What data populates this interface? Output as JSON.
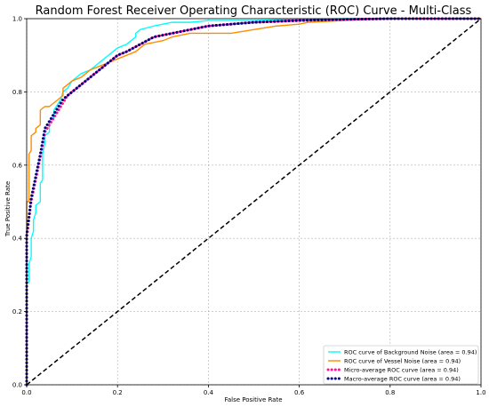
{
  "chart_data": {
    "type": "line",
    "title": "Random Forest Receiver Operating Characteristic (ROC) Curve - Multi-Class",
    "xlabel": "False Positive Rate",
    "ylabel": "True Positive Rate",
    "xlim": [
      0.0,
      1.0
    ],
    "ylim": [
      0.0,
      1.0
    ],
    "xticks": [
      "0.0",
      "0.2",
      "0.4",
      "0.6",
      "0.8",
      "1.0"
    ],
    "yticks": [
      "0.0",
      "0.2",
      "0.4",
      "0.6",
      "0.8",
      "1.0"
    ],
    "grid": true,
    "legend_position": "lower-right",
    "series": [
      {
        "name": "ROC curve of Background Noise (area = 0.94)",
        "color": "#00ffff",
        "style": "solid",
        "x": [
          0.0,
          0.0,
          0.005,
          0.005,
          0.01,
          0.01,
          0.015,
          0.015,
          0.02,
          0.02,
          0.03,
          0.03,
          0.035,
          0.035,
          0.04,
          0.04,
          0.05,
          0.05,
          0.06,
          0.06,
          0.07,
          0.075,
          0.08,
          0.09,
          0.1,
          0.11,
          0.12,
          0.14,
          0.15,
          0.16,
          0.17,
          0.18,
          0.19,
          0.2,
          0.22,
          0.24,
          0.24,
          0.25,
          0.28,
          0.3,
          0.32,
          0.36,
          0.4,
          0.5,
          0.55,
          0.6,
          0.7,
          0.8,
          1.0
        ],
        "y": [
          0.0,
          0.28,
          0.28,
          0.33,
          0.35,
          0.4,
          0.42,
          0.45,
          0.47,
          0.49,
          0.5,
          0.55,
          0.56,
          0.63,
          0.66,
          0.68,
          0.69,
          0.72,
          0.73,
          0.75,
          0.77,
          0.78,
          0.8,
          0.81,
          0.83,
          0.84,
          0.85,
          0.86,
          0.87,
          0.88,
          0.89,
          0.9,
          0.91,
          0.92,
          0.93,
          0.95,
          0.96,
          0.97,
          0.98,
          0.985,
          0.99,
          0.99,
          0.995,
          0.995,
          0.997,
          0.998,
          1.0,
          1.0,
          1.0
        ]
      },
      {
        "name": "ROC curve of Vessel Noise (area = 0.94)",
        "color": "#ff8c00",
        "style": "solid",
        "x": [
          0.0,
          0.0,
          0.005,
          0.005,
          0.01,
          0.01,
          0.02,
          0.02,
          0.03,
          0.03,
          0.04,
          0.05,
          0.06,
          0.07,
          0.08,
          0.08,
          0.09,
          0.1,
          0.12,
          0.13,
          0.14,
          0.16,
          0.18,
          0.2,
          0.22,
          0.24,
          0.26,
          0.3,
          0.32,
          0.36,
          0.4,
          0.45,
          0.5,
          0.55,
          0.6,
          0.62,
          0.7,
          0.75,
          0.8,
          1.0
        ],
        "y": [
          0.0,
          0.5,
          0.5,
          0.63,
          0.64,
          0.68,
          0.69,
          0.7,
          0.71,
          0.75,
          0.76,
          0.76,
          0.77,
          0.78,
          0.79,
          0.81,
          0.82,
          0.83,
          0.84,
          0.85,
          0.86,
          0.87,
          0.88,
          0.89,
          0.9,
          0.91,
          0.93,
          0.94,
          0.95,
          0.96,
          0.96,
          0.96,
          0.97,
          0.98,
          0.985,
          0.99,
          0.995,
          0.998,
          1.0,
          1.0
        ]
      },
      {
        "name": "Micro-average ROC curve (area = 0.94)",
        "color": "#ff1493",
        "style": "dotted",
        "x": [
          0.0,
          0.0,
          0.005,
          0.01,
          0.015,
          0.02,
          0.03,
          0.04,
          0.05,
          0.06,
          0.07,
          0.08,
          0.09,
          0.1,
          0.11,
          0.12,
          0.14,
          0.16,
          0.18,
          0.2,
          0.22,
          0.25,
          0.28,
          0.32,
          0.36,
          0.4,
          0.5,
          0.6,
          0.7,
          0.8,
          0.9,
          1.0
        ],
        "y": [
          0.0,
          0.4,
          0.45,
          0.5,
          0.53,
          0.56,
          0.62,
          0.69,
          0.71,
          0.73,
          0.75,
          0.77,
          0.79,
          0.8,
          0.81,
          0.82,
          0.84,
          0.86,
          0.88,
          0.9,
          0.91,
          0.93,
          0.95,
          0.96,
          0.97,
          0.98,
          0.99,
          0.995,
          0.998,
          1.0,
          1.0,
          1.0
        ]
      },
      {
        "name": "Macro-average ROC curve (area = 0.94)",
        "color": "#000080",
        "style": "dotted",
        "x": [
          0.0,
          0.0,
          0.005,
          0.01,
          0.015,
          0.02,
          0.03,
          0.04,
          0.05,
          0.06,
          0.07,
          0.08,
          0.09,
          0.1,
          0.11,
          0.12,
          0.14,
          0.16,
          0.18,
          0.2,
          0.22,
          0.25,
          0.28,
          0.32,
          0.36,
          0.4,
          0.5,
          0.6,
          0.7,
          0.8,
          0.9,
          1.0
        ],
        "y": [
          0.0,
          0.41,
          0.46,
          0.51,
          0.54,
          0.57,
          0.63,
          0.7,
          0.72,
          0.74,
          0.76,
          0.78,
          0.79,
          0.8,
          0.81,
          0.82,
          0.84,
          0.86,
          0.88,
          0.9,
          0.91,
          0.93,
          0.95,
          0.96,
          0.97,
          0.98,
          0.99,
          0.995,
          0.998,
          1.0,
          1.0,
          1.0
        ]
      }
    ],
    "reference_line": {
      "x": [
        0.0,
        1.0
      ],
      "y": [
        0.0,
        1.0
      ],
      "color": "#000000",
      "style": "dashed"
    }
  }
}
